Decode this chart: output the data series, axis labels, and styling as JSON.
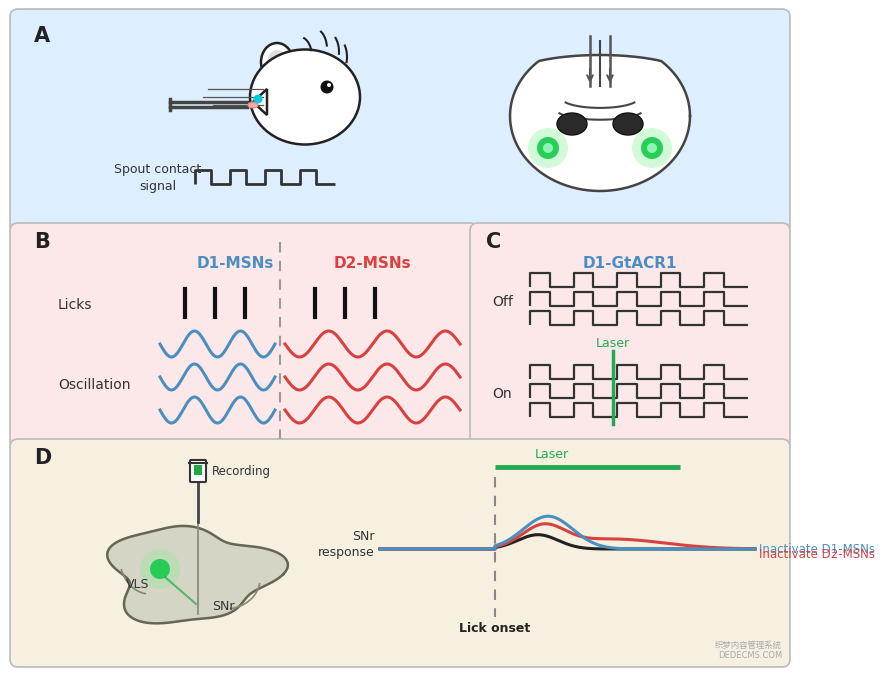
{
  "bg_color_A": "#ddeeff",
  "bg_color_B": "#fce8e8",
  "bg_color_C": "#fce8e8",
  "bg_color_D": "#f5f0e0",
  "panel_A_label": "A",
  "panel_B_label": "B",
  "panel_C_label": "C",
  "panel_D_label": "D",
  "color_D1": "#4a8fc0",
  "color_D2": "#d94040",
  "color_green": "#2e8b57",
  "color_laser_green": "#22aa55",
  "color_black": "#222222",
  "color_dark": "#333333",
  "text_spout": "Spout contact\nsignal",
  "text_D1MSNs": "D1-MSNs",
  "text_D2MSNs": "D2-MSNs",
  "text_licks": "Licks",
  "text_oscillation": "Oscillation",
  "text_D1GtACR1": "D1-GtACR1",
  "text_off": "Off",
  "text_on": "On",
  "text_laser_C": "Laser",
  "text_recording": "Recording",
  "text_VLS": "VLS",
  "text_SNr": "SNr",
  "text_SNr_response": "SNr\nresponse",
  "text_lick_onset": "Lick onset",
  "text_laser_D": "Laser",
  "text_inact_D1": "Inactivate D1-MSNs",
  "text_inact_D2": "Inactivate D2-MSNs",
  "fig_width": 7.8,
  "fig_height": 6.59
}
